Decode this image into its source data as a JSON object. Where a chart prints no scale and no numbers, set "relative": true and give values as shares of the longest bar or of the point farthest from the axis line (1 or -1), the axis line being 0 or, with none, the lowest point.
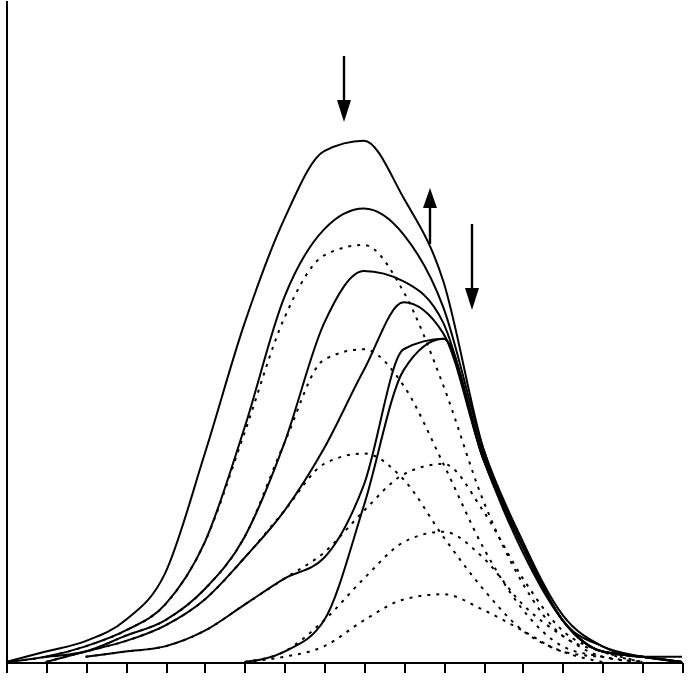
{
  "chart_data": {
    "type": "line",
    "relative": true,
    "tick_labels": false,
    "categories": [
      null,
      null,
      null,
      null,
      null,
      null,
      null,
      null,
      null,
      null,
      null,
      null,
      null,
      null,
      null,
      null,
      null,
      null
    ],
    "series": [
      {
        "color": "#000000",
        "line_style": "solid",
        "values": [
          0,
          0.02,
          0.04,
          0.08,
          0.17,
          0.4,
          0.65,
          0.85,
          0.98,
          1,
          0.89,
          0.73,
          0.41,
          0.23,
          0.09,
          0.03,
          0.01,
          0.01
        ]
      },
      {
        "color": "#000000",
        "line_style": "solid",
        "values": [
          0,
          0.01,
          0.03,
          0.06,
          0.11,
          0.23,
          0.45,
          0.7,
          0.83,
          0.87,
          0.82,
          0.68,
          0.41,
          0.23,
          0.08,
          0.03,
          0.01,
          0
        ]
      },
      {
        "color": "#000000",
        "line_style": "solid",
        "values": [
          null,
          0.01,
          0.02,
          0.05,
          0.08,
          0.14,
          0.24,
          0.42,
          0.65,
          0.75,
          0.73,
          0.65,
          0.4,
          0.22,
          0.08,
          0.02,
          0.01,
          0
        ]
      },
      {
        "color": "#000000",
        "line_style": "solid",
        "values": [
          null,
          0,
          0.02,
          0.04,
          0.07,
          0.12,
          0.2,
          0.29,
          0.41,
          0.56,
          0.69,
          0.63,
          0.39,
          0.22,
          0.08,
          0.02,
          0.01,
          0
        ]
      },
      {
        "color": "#000000",
        "line_style": "solid",
        "values": [
          null,
          null,
          0.01,
          0.02,
          0.03,
          0.06,
          0.11,
          0.16,
          0.2,
          0.34,
          0.6,
          0.62,
          0.39,
          0.22,
          0.08,
          0.02,
          0.01,
          0
        ]
      },
      {
        "color": "#000000",
        "line_style": "solid",
        "values": [
          null,
          null,
          null,
          null,
          null,
          null,
          0,
          0.02,
          0.08,
          0.3,
          0.56,
          0.62,
          0.39,
          0.21,
          0.08,
          0.02,
          0.01,
          0
        ]
      },
      {
        "color": "#000000",
        "line_style": "dotted",
        "values": [
          0,
          0.01,
          0.03,
          0.06,
          0.11,
          0.23,
          0.44,
          0.66,
          0.78,
          0.8,
          0.71,
          0.53,
          0.31,
          0.15,
          0.05,
          0.02,
          0,
          null
        ]
      },
      {
        "color": "#000000",
        "line_style": "dotted",
        "values": [
          null,
          0.01,
          0.02,
          0.05,
          0.08,
          0.14,
          0.24,
          0.42,
          0.58,
          0.6,
          0.53,
          0.38,
          0.22,
          0.1,
          0.03,
          0.01,
          0,
          null
        ]
      },
      {
        "color": "#000000",
        "line_style": "dotted",
        "values": [
          null,
          0,
          0.02,
          0.04,
          0.07,
          0.12,
          0.2,
          0.29,
          0.38,
          0.4,
          0.35,
          0.24,
          0.14,
          0.06,
          0.02,
          0,
          null,
          null
        ]
      },
      {
        "color": "#000000",
        "line_style": "dotted",
        "values": [
          null,
          null,
          0.01,
          0.02,
          0.03,
          0.06,
          0.11,
          0.16,
          0.21,
          0.29,
          0.36,
          0.38,
          0.29,
          0.16,
          0.06,
          0.02,
          0,
          null
        ]
      },
      {
        "color": "#000000",
        "line_style": "dotted",
        "values": [
          null,
          null,
          null,
          null,
          null,
          null,
          0,
          0.02,
          0.08,
          0.16,
          0.23,
          0.25,
          0.2,
          0.11,
          0.05,
          0.01,
          0,
          null
        ]
      },
      {
        "color": "#000000",
        "line_style": "dotted",
        "values": [
          null,
          null,
          null,
          null,
          null,
          null,
          0,
          0.01,
          0.03,
          0.08,
          0.12,
          0.13,
          0.1,
          0.06,
          0.02,
          0.01,
          null,
          null
        ]
      }
    ]
  }
}
